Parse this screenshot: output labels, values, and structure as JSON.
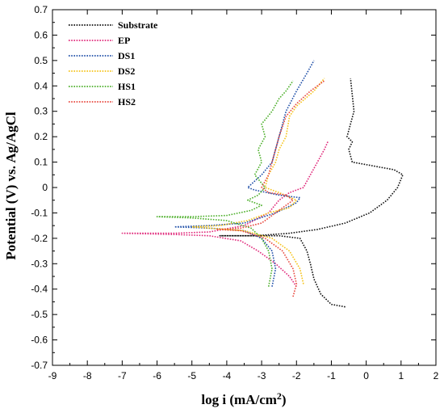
{
  "chart_data": {
    "type": "line",
    "title": "",
    "xlabel": "log i (mA/cm",
    "xlabel_sup": "2",
    "xlabel_close": ")",
    "ylabel": "Potential (V) vs. Ag/AgCl",
    "xlim": [
      -9,
      2
    ],
    "ylim": [
      -0.7,
      0.7
    ],
    "x_ticks": [
      -9,
      -8,
      -7,
      -6,
      -5,
      -4,
      -3,
      -2,
      -1,
      0,
      1,
      2
    ],
    "y_ticks": [
      0.7,
      0.6,
      0.5,
      0.4,
      0.3,
      0.2,
      0.1,
      0,
      -0.1,
      -0.2,
      -0.3,
      -0.4,
      -0.5,
      -0.6,
      -0.7
    ],
    "x_tick_labels": [
      "-9",
      "-8",
      "-7",
      "-6",
      "-5",
      "-4",
      "-3",
      "-2",
      "-1",
      "0",
      "1",
      "2"
    ],
    "y_tick_labels": [
      "0.7",
      "0.6",
      "0.5",
      "0.4",
      "0.3",
      "0.2",
      "0.1",
      "0",
      "-0.1",
      "-0.2",
      "-0.3",
      "-0.4",
      "-0.5",
      "-0.6",
      "-0.7"
    ],
    "grid": false,
    "legend_position": "top-left",
    "series": [
      {
        "name": "Substrate",
        "color": "#111111",
        "points": [
          [
            -0.6,
            -0.47
          ],
          [
            -1.0,
            -0.46
          ],
          [
            -1.3,
            -0.42
          ],
          [
            -1.5,
            -0.36
          ],
          [
            -1.6,
            -0.3
          ],
          [
            -1.7,
            -0.25
          ],
          [
            -1.9,
            -0.2
          ],
          [
            -2.5,
            -0.19
          ],
          [
            -3.3,
            -0.19
          ],
          [
            -4.2,
            -0.19
          ],
          [
            -3.2,
            -0.19
          ],
          [
            -2.2,
            -0.18
          ],
          [
            -1.4,
            -0.165
          ],
          [
            -0.6,
            -0.14
          ],
          [
            0.1,
            -0.1
          ],
          [
            0.6,
            -0.05
          ],
          [
            0.9,
            0.0
          ],
          [
            1.05,
            0.05
          ],
          [
            0.8,
            0.07
          ],
          [
            0.4,
            0.08
          ],
          [
            0.0,
            0.09
          ],
          [
            -0.4,
            0.1
          ],
          [
            -0.5,
            0.15
          ],
          [
            -0.4,
            0.18
          ],
          [
            -0.55,
            0.2
          ],
          [
            -0.35,
            0.3
          ],
          [
            -0.45,
            0.43
          ]
        ]
      },
      {
        "name": "EP",
        "color": "#e0287a",
        "points": [
          [
            -2.0,
            -0.39
          ],
          [
            -2.2,
            -0.35
          ],
          [
            -2.6,
            -0.3
          ],
          [
            -3.1,
            -0.25
          ],
          [
            -3.6,
            -0.21
          ],
          [
            -4.5,
            -0.19
          ],
          [
            -5.5,
            -0.185
          ],
          [
            -7.0,
            -0.18
          ],
          [
            -5.5,
            -0.18
          ],
          [
            -4.5,
            -0.175
          ],
          [
            -3.5,
            -0.15
          ],
          [
            -2.8,
            -0.1
          ],
          [
            -2.5,
            -0.05
          ],
          [
            -2.2,
            -0.02
          ],
          [
            -1.8,
            0.0
          ],
          [
            -1.6,
            0.05
          ],
          [
            -1.4,
            0.1
          ],
          [
            -1.2,
            0.15
          ],
          [
            -1.1,
            0.18
          ]
        ]
      },
      {
        "name": "DS1",
        "color": "#1f4fa8",
        "points": [
          [
            -2.7,
            -0.39
          ],
          [
            -2.6,
            -0.32
          ],
          [
            -2.7,
            -0.25
          ],
          [
            -3.0,
            -0.2
          ],
          [
            -3.5,
            -0.17
          ],
          [
            -4.5,
            -0.16
          ],
          [
            -5.5,
            -0.155
          ],
          [
            -4.5,
            -0.15
          ],
          [
            -3.5,
            -0.14
          ],
          [
            -2.6,
            -0.1
          ],
          [
            -2.0,
            -0.06
          ],
          [
            -1.9,
            -0.04
          ],
          [
            -2.5,
            -0.03
          ],
          [
            -3.2,
            -0.01
          ],
          [
            -3.4,
            0.0
          ],
          [
            -3.0,
            0.05
          ],
          [
            -2.7,
            0.1
          ],
          [
            -2.5,
            0.2
          ],
          [
            -2.3,
            0.3
          ],
          [
            -2.0,
            0.38
          ],
          [
            -1.7,
            0.45
          ],
          [
            -1.5,
            0.5
          ]
        ]
      },
      {
        "name": "DS2",
        "color": "#f5c31a",
        "points": [
          [
            -1.8,
            -0.38
          ],
          [
            -1.9,
            -0.32
          ],
          [
            -2.2,
            -0.25
          ],
          [
            -2.7,
            -0.2
          ],
          [
            -3.5,
            -0.17
          ],
          [
            -4.5,
            -0.16
          ],
          [
            -5.0,
            -0.155
          ],
          [
            -4.2,
            -0.15
          ],
          [
            -3.4,
            -0.13
          ],
          [
            -2.8,
            -0.1
          ],
          [
            -2.2,
            -0.08
          ],
          [
            -2.0,
            -0.05
          ],
          [
            -2.5,
            -0.02
          ],
          [
            -2.9,
            0.0
          ],
          [
            -2.8,
            0.05
          ],
          [
            -2.6,
            0.1
          ],
          [
            -2.5,
            0.15
          ],
          [
            -2.3,
            0.2
          ],
          [
            -2.2,
            0.28
          ],
          [
            -2.0,
            0.32
          ],
          [
            -1.5,
            0.38
          ],
          [
            -1.2,
            0.43
          ]
        ]
      },
      {
        "name": "HS1",
        "color": "#4caf2a",
        "points": [
          [
            -2.8,
            -0.39
          ],
          [
            -2.7,
            -0.32
          ],
          [
            -2.8,
            -0.25
          ],
          [
            -3.0,
            -0.2
          ],
          [
            -3.3,
            -0.16
          ],
          [
            -4.0,
            -0.13
          ],
          [
            -5.0,
            -0.12
          ],
          [
            -6.0,
            -0.115
          ],
          [
            -5.0,
            -0.115
          ],
          [
            -4.0,
            -0.11
          ],
          [
            -3.3,
            -0.09
          ],
          [
            -3.0,
            -0.07
          ],
          [
            -3.4,
            -0.05
          ],
          [
            -3.1,
            -0.03
          ],
          [
            -2.9,
            0.0
          ],
          [
            -3.2,
            0.05
          ],
          [
            -3.0,
            0.1
          ],
          [
            -3.1,
            0.15
          ],
          [
            -2.9,
            0.2
          ],
          [
            -3.0,
            0.25
          ],
          [
            -2.7,
            0.3
          ],
          [
            -2.5,
            0.35
          ],
          [
            -2.3,
            0.38
          ],
          [
            -2.1,
            0.42
          ]
        ]
      },
      {
        "name": "HS2",
        "color": "#e8483e",
        "points": [
          [
            -2.1,
            -0.43
          ],
          [
            -2.0,
            -0.38
          ],
          [
            -2.1,
            -0.32
          ],
          [
            -2.4,
            -0.25
          ],
          [
            -2.9,
            -0.2
          ],
          [
            -3.6,
            -0.17
          ],
          [
            -4.3,
            -0.165
          ],
          [
            -3.6,
            -0.16
          ],
          [
            -3.0,
            -0.14
          ],
          [
            -2.6,
            -0.1
          ],
          [
            -2.1,
            -0.05
          ],
          [
            -2.3,
            -0.03
          ],
          [
            -2.8,
            -0.02
          ],
          [
            -3.0,
            0.0
          ],
          [
            -2.8,
            0.05
          ],
          [
            -2.7,
            0.1
          ],
          [
            -2.6,
            0.15
          ],
          [
            -2.5,
            0.2
          ],
          [
            -2.3,
            0.28
          ],
          [
            -2.0,
            0.33
          ],
          [
            -1.6,
            0.38
          ],
          [
            -1.2,
            0.42
          ]
        ]
      }
    ]
  }
}
